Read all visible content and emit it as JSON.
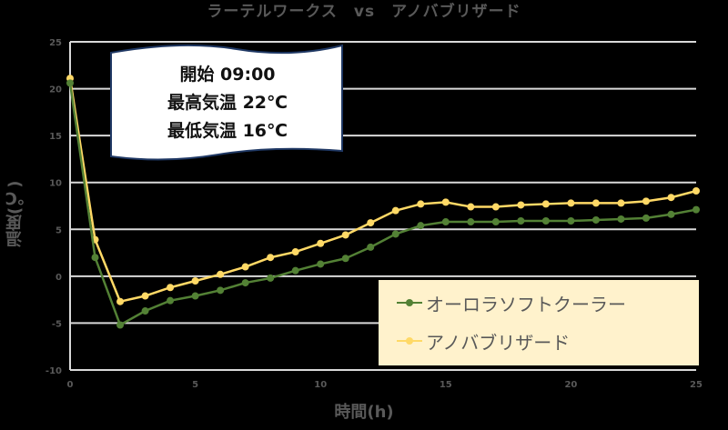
{
  "title": "ラーテルワークス　vs　アノバブリザード",
  "note": {
    "lines": [
      "開始 09:00",
      "最高気温 22℃",
      "最低気温 16℃"
    ]
  },
  "legend": {
    "items": [
      {
        "label": "オーロラソフトクーラー",
        "color": "#538135"
      },
      {
        "label": "アノバブリザード",
        "color": "#FFD966"
      }
    ]
  },
  "axes": {
    "xlabel": "時間(h)",
    "ylabel": "温度(℃)",
    "xticks": [
      "0",
      "5",
      "10",
      "15",
      "20",
      "25"
    ],
    "yticks": [
      "25",
      "20",
      "15",
      "10",
      "5",
      "0",
      "-5",
      "-10"
    ]
  },
  "chart_data": {
    "type": "line",
    "title": "ラーテルワークス vs アノバブリザード",
    "xlabel": "時間(h)",
    "ylabel": "温度(℃)",
    "xlim": [
      0,
      25
    ],
    "ylim": [
      -10,
      25
    ],
    "grid": "horizontal",
    "legend_position": "inside-bottom-right",
    "x": [
      0,
      1,
      2,
      3,
      4,
      5,
      6,
      7,
      8,
      9,
      10,
      11,
      12,
      13,
      14,
      15,
      16,
      17,
      18,
      19,
      20,
      21,
      22,
      23,
      24,
      25
    ],
    "series": [
      {
        "name": "オーロラソフトクーラー",
        "color": "#538135",
        "values": [
          20.6,
          2.0,
          -5.2,
          -3.7,
          -2.6,
          -2.1,
          -1.5,
          -0.7,
          -0.2,
          0.6,
          1.3,
          1.9,
          3.1,
          4.5,
          5.4,
          5.8,
          5.8,
          5.8,
          5.9,
          5.9,
          5.9,
          6.0,
          6.1,
          6.2,
          6.6,
          7.1
        ]
      },
      {
        "name": "アノバブリザード",
        "color": "#FFD966",
        "values": [
          21.1,
          3.9,
          -2.7,
          -2.1,
          -1.2,
          -0.5,
          0.2,
          1.0,
          2.0,
          2.6,
          3.5,
          4.4,
          5.7,
          7.0,
          7.7,
          7.9,
          7.4,
          7.4,
          7.6,
          7.7,
          7.8,
          7.8,
          7.8,
          8.0,
          8.4,
          9.1
        ]
      }
    ],
    "annotations": [
      "開始 09:00",
      "最高気温 22℃",
      "最低気温 16℃"
    ]
  }
}
